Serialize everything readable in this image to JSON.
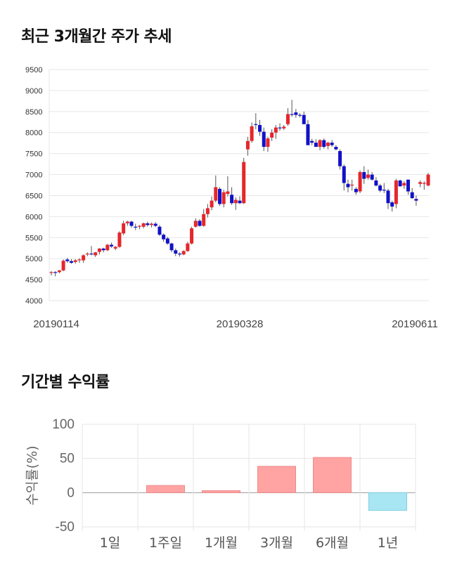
{
  "section1": {
    "title": "최근 3개월간 주가 추세"
  },
  "section2": {
    "title": "기간별 수익률"
  },
  "chart_data": [
    {
      "type": "candlestick",
      "title": "최근 3개월간 주가 추세",
      "ylim": [
        4000,
        9500
      ],
      "y_ticks": [
        "9500",
        "9000",
        "8500",
        "8000",
        "7500",
        "7000",
        "6500",
        "6000",
        "5500",
        "5000",
        "4500",
        "4000"
      ],
      "x_ticks": [
        "20190114",
        "20190328",
        "20190611"
      ],
      "grid": true,
      "colors": {
        "up": "#e5262b",
        "down": "#1111c8",
        "wick": "#555555"
      },
      "candles": [
        [
          4680,
          4700,
          4600,
          4680
        ],
        [
          4680,
          4700,
          4580,
          4660
        ],
        [
          4680,
          4730,
          4650,
          4720
        ],
        [
          4720,
          4980,
          4700,
          4950
        ],
        [
          4980,
          5020,
          4900,
          4940
        ],
        [
          4940,
          4990,
          4880,
          4900
        ],
        [
          4920,
          4990,
          4880,
          4960
        ],
        [
          4960,
          5010,
          4900,
          4980
        ],
        [
          4960,
          5100,
          4900,
          5080
        ],
        [
          5100,
          5150,
          5060,
          5120
        ],
        [
          5120,
          5300,
          5080,
          5100
        ],
        [
          5080,
          5160,
          5040,
          5150
        ],
        [
          5160,
          5250,
          5100,
          5240
        ],
        [
          5240,
          5260,
          5150,
          5200
        ],
        [
          5200,
          5350,
          5180,
          5330
        ],
        [
          5330,
          5380,
          5260,
          5290
        ],
        [
          5240,
          5300,
          5200,
          5280
        ],
        [
          5280,
          5650,
          5260,
          5620
        ],
        [
          5600,
          5900,
          5560,
          5840
        ],
        [
          5840,
          5900,
          5780,
          5880
        ],
        [
          5880,
          5900,
          5740,
          5780
        ],
        [
          5760,
          5830,
          5680,
          5740
        ],
        [
          5760,
          5800,
          5700,
          5780
        ],
        [
          5760,
          5860,
          5720,
          5840
        ],
        [
          5840,
          5880,
          5760,
          5800
        ],
        [
          5800,
          5860,
          5740,
          5830
        ],
        [
          5830,
          5870,
          5750,
          5780
        ],
        [
          5760,
          5800,
          5540,
          5570
        ],
        [
          5570,
          5600,
          5400,
          5460
        ],
        [
          5480,
          5520,
          5330,
          5360
        ],
        [
          5360,
          5380,
          5150,
          5200
        ],
        [
          5200,
          5240,
          5060,
          5120
        ],
        [
          5120,
          5150,
          5050,
          5100
        ],
        [
          5100,
          5200,
          5080,
          5180
        ],
        [
          5180,
          5400,
          5160,
          5360
        ],
        [
          5360,
          5760,
          5340,
          5720
        ],
        [
          5760,
          5960,
          5740,
          5900
        ],
        [
          5900,
          5940,
          5760,
          5780
        ],
        [
          5780,
          6180,
          5760,
          6060
        ],
        [
          6060,
          6300,
          5980,
          6200
        ],
        [
          6220,
          6480,
          6150,
          6380
        ],
        [
          6380,
          6980,
          6340,
          6700
        ],
        [
          6660,
          6700,
          6260,
          6300
        ],
        [
          6300,
          6640,
          6220,
          6580
        ],
        [
          6540,
          6960,
          6480,
          6600
        ],
        [
          6520,
          6700,
          6280,
          6320
        ],
        [
          6320,
          6460,
          6160,
          6400
        ],
        [
          6380,
          6480,
          6300,
          6320
        ],
        [
          6320,
          7400,
          6300,
          7300
        ],
        [
          7600,
          7900,
          7450,
          7800
        ],
        [
          7800,
          8240,
          7760,
          8150
        ],
        [
          8200,
          8460,
          8080,
          8180
        ],
        [
          8180,
          8300,
          7920,
          8020
        ],
        [
          8020,
          8120,
          7560,
          7660
        ],
        [
          7660,
          7900,
          7540,
          7860
        ],
        [
          7880,
          8080,
          7800,
          8000
        ],
        [
          8000,
          8180,
          7850,
          8120
        ],
        [
          8120,
          8220,
          8040,
          8100
        ],
        [
          8100,
          8180,
          8060,
          8140
        ],
        [
          8200,
          8580,
          8160,
          8440
        ],
        [
          8440,
          8780,
          8380,
          8420
        ],
        [
          8480,
          8560,
          8350,
          8420
        ],
        [
          8420,
          8460,
          8360,
          8400
        ],
        [
          8420,
          8500,
          8200,
          8200
        ],
        [
          8200,
          8300,
          7700,
          7700
        ],
        [
          7800,
          7850,
          7700,
          7760
        ],
        [
          7760,
          7840,
          7660,
          7660
        ],
        [
          7660,
          7840,
          7580,
          7820
        ],
        [
          7820,
          7860,
          7620,
          7660
        ],
        [
          7680,
          7780,
          7600,
          7760
        ],
        [
          7760,
          7820,
          7660,
          7700
        ],
        [
          7660,
          7700,
          7580,
          7600
        ],
        [
          7560,
          7600,
          7120,
          7200
        ],
        [
          7200,
          7240,
          6620,
          6800
        ],
        [
          6780,
          6880,
          6580,
          6700
        ],
        [
          6740,
          6880,
          6620,
          6760
        ],
        [
          6660,
          6700,
          6520,
          6580
        ],
        [
          6600,
          7100,
          6560,
          7060
        ],
        [
          7060,
          7200,
          6780,
          6900
        ],
        [
          6920,
          7120,
          6880,
          7000
        ],
        [
          7000,
          7060,
          6860,
          6880
        ],
        [
          6860,
          6940,
          6720,
          6740
        ],
        [
          6740,
          6780,
          6580,
          6620
        ],
        [
          6640,
          6800,
          6560,
          6620
        ],
        [
          6620,
          6660,
          6180,
          6320
        ],
        [
          6340,
          6380,
          6120,
          6240
        ],
        [
          6300,
          6900,
          6200,
          6860
        ],
        [
          6860,
          6880,
          6720,
          6720
        ],
        [
          6740,
          6840,
          6660,
          6800
        ],
        [
          6880,
          6880,
          6520,
          6600
        ],
        [
          6580,
          6680,
          6420,
          6440
        ],
        [
          6420,
          6500,
          6260,
          6380
        ],
        [
          6780,
          6860,
          6700,
          6820
        ],
        [
          6800,
          6840,
          6640,
          6800
        ],
        [
          6740,
          7040,
          6720,
          7000
        ]
      ]
    },
    {
      "type": "bar",
      "title": "기간별 수익률",
      "categories": [
        "1일",
        "1주일",
        "1개월",
        "3개월",
        "6개월",
        "1년"
      ],
      "values": [
        0,
        10.5,
        3,
        38.5,
        51.5,
        -26
      ],
      "ylabel": "수익률(%)",
      "ylim": [
        -50,
        100
      ],
      "y_ticks": [
        "100",
        "50",
        "0",
        "-50"
      ],
      "colors": {
        "positive": "#ffa3a3",
        "negative": "#a8e6f3",
        "positive_edge": "#ef8a8a",
        "negative_edge": "#80cfe0"
      }
    }
  ]
}
